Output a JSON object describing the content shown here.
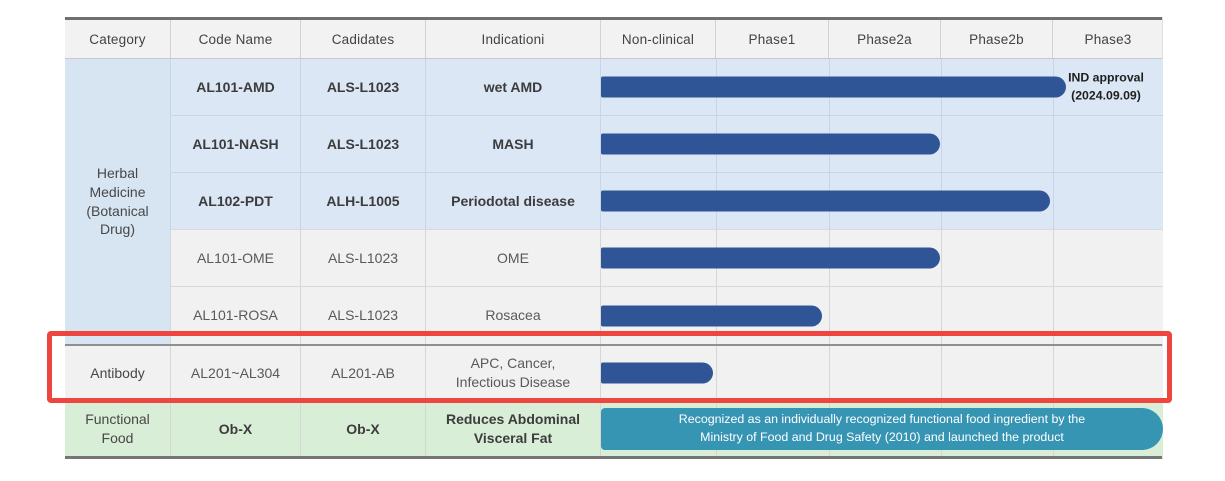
{
  "colors": {
    "bar": "#2f5597",
    "banner": "#3795b4",
    "highlight": "#ee453e",
    "row_blue": "#dbe7f5",
    "row_gray": "#f1f1f1",
    "row_green": "#d9eed7",
    "header_bg": "#f2f2f2",
    "category_blue": "#d7e5f3"
  },
  "table": {
    "columns": [
      "Category",
      "Code Name",
      "Cadidates",
      "Indicationi",
      "Non-clinical",
      "Phase1",
      "Phase2a",
      "Phase2b",
      "Phase3"
    ],
    "groups": [
      {
        "category": "Herbal\nMedicine\n(Botanical\nDrug)",
        "rows": [
          {
            "code": "AL101-AMD",
            "candidate": "ALS-L1023",
            "indication": "wet AMD",
            "bar_pct": "82.8%",
            "annotation": "IND approval\n(2024.09.09)"
          },
          {
            "code": "AL101-NASH",
            "candidate": "ALS-L1023",
            "indication": "MASH",
            "bar_pct": "60.4%"
          },
          {
            "code": "AL102-PDT",
            "candidate": "ALH-L1005",
            "indication": "Periodotal disease",
            "bar_pct": "79.9%"
          },
          {
            "code": "AL101-OME",
            "candidate": "ALS-L1023",
            "indication": "OME",
            "bar_pct": "60.4%"
          },
          {
            "code": "AL101-ROSA",
            "candidate": "ALS-L1023",
            "indication": "Rosacea",
            "bar_pct": "39.4%"
          }
        ]
      },
      {
        "category": "Antibody",
        "rows": [
          {
            "code": "AL201~AL304",
            "candidate": "AL201-AB",
            "indication": "APC, Cancer,\nInfectious Disease",
            "bar_pct": "19.9%"
          }
        ]
      },
      {
        "category": "Functional\nFood",
        "rows": [
          {
            "code": "Ob-X",
            "candidate": "Ob-X",
            "indication": "Reduces Abdominal\nVisceral Fat",
            "banner": "Recognized as an individually recognized functional food ingredient by the\nMinistry of Food and Drug Safety (2010) and launched the product",
            "banner_width": "100%"
          }
        ]
      }
    ]
  },
  "chart_data": {
    "type": "bar",
    "orientation": "horizontal",
    "title": "Drug development pipeline progress",
    "x_categories": [
      "Non-clinical",
      "Phase1",
      "Phase2a",
      "Phase2b",
      "Phase3"
    ],
    "axis_range_units": [
      0,
      5
    ],
    "grid": true,
    "rows": [
      {
        "label": "wet AMD (AL101-AMD / ALS-L1023)",
        "phase_units": 4.15,
        "end_phase": "entered Phase3",
        "annotation": "IND approval (2024.09.09)"
      },
      {
        "label": "MASH (AL101-NASH / ALS-L1023)",
        "phase_units": 3.0,
        "end_phase": "Phase2a complete"
      },
      {
        "label": "Periodotal disease (AL102-PDT / ALH-L1005)",
        "phase_units": 4.0,
        "end_phase": "Phase2b complete"
      },
      {
        "label": "OME (AL101-OME / ALS-L1023)",
        "phase_units": 3.0,
        "end_phase": "Phase2a complete"
      },
      {
        "label": "Rosacea (AL101-ROSA / ALS-L1023)",
        "phase_units": 2.0,
        "end_phase": "Phase1 complete"
      },
      {
        "label": "APC, Cancer, Infectious Disease (AL201-AB)",
        "phase_units": 1.0,
        "end_phase": "Non-clinical"
      },
      {
        "label": "Reduces Abdominal Visceral Fat (Ob-X)",
        "phase_units": 5.0,
        "end_phase": "Launched as functional food (2010)"
      }
    ]
  }
}
